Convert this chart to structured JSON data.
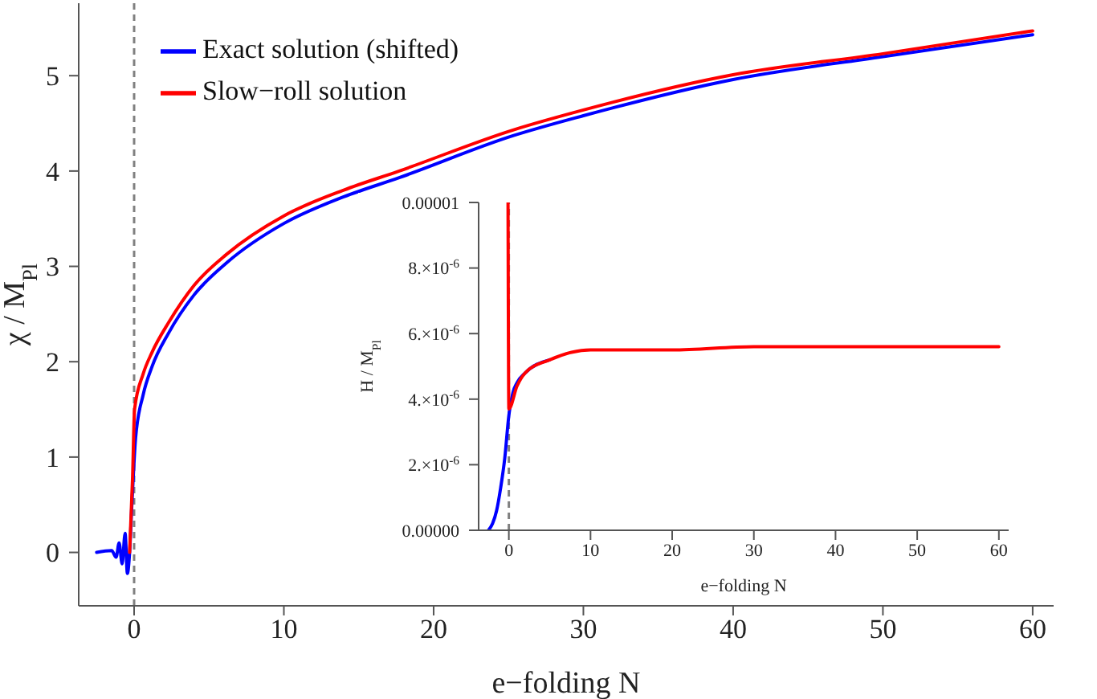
{
  "chart_data": [
    {
      "type": "line",
      "xlabel": "e−folding N",
      "ylabel": "χ / M$_{Pl}$",
      "xlim": [
        -3.7,
        61.4
      ],
      "ylim": [
        -0.56,
        5.76
      ],
      "xticks": [
        0,
        10,
        20,
        30,
        40,
        50,
        60
      ],
      "yticks": [
        0,
        1,
        2,
        3,
        4,
        5
      ],
      "legend": "top left",
      "ref_lines": [
        {
          "axis": "x",
          "value": 0,
          "color": "#808080",
          "line_style": "dashed"
        }
      ],
      "series": [
        {
          "name": "Exact solution (shifted)",
          "color": "#0000ff",
          "x": [
            -2.5,
            -1.5,
            -1.2,
            -1.0,
            -0.8,
            -0.6,
            -0.45,
            -0.3,
            -0.15,
            0.1,
            0.6,
            1.2,
            2.3,
            4,
            6.2,
            10,
            14,
            17.7,
            25.3,
            30,
            40,
            50,
            60
          ],
          "values": [
            0,
            0.02,
            -0.05,
            0.1,
            -0.12,
            0.2,
            -0.22,
            0,
            0.5,
            1.2,
            1.65,
            1.95,
            2.3,
            2.7,
            3.04,
            3.45,
            3.73,
            3.93,
            4.37,
            4.58,
            4.96,
            5.2,
            5.43
          ]
        },
        {
          "name": "Slow−roll solution",
          "color": "#ff0000",
          "x": [
            -0.3,
            -0.1,
            0.03,
            0.6,
            1.2,
            2.3,
            4,
            6.2,
            10,
            14,
            17.7,
            25.3,
            30,
            40,
            50,
            60
          ],
          "values": [
            0,
            0.8,
            1.5,
            1.87,
            2.1,
            2.41,
            2.8,
            3.13,
            3.53,
            3.8,
            4.0,
            4.43,
            4.64,
            5.01,
            5.23,
            5.47
          ]
        }
      ]
    },
    {
      "type": "line",
      "xlabel": "e−folding N",
      "ylabel": "H / M$_{Pl}$",
      "xlim": [
        -3.7,
        61.2
      ],
      "ylim": [
        0,
        1e-05
      ],
      "xticks": [
        0,
        10,
        20,
        30,
        40,
        50,
        60
      ],
      "yticks": [
        {
          "value": 0,
          "label": "0.00000"
        },
        {
          "value": 2e-06,
          "label": "2.×10$^{-6}$"
        },
        {
          "value": 4e-06,
          "label": "4.×10$^{-6}$"
        },
        {
          "value": 6e-06,
          "label": "6.×10$^{-6}$"
        },
        {
          "value": 8e-06,
          "label": "8.×10$^{-6}$"
        },
        {
          "value": 1e-05,
          "label": "0.00001"
        }
      ],
      "ref_lines": [
        {
          "axis": "x",
          "value": 0,
          "color": "#808080",
          "line_style": "dashed"
        }
      ],
      "series": [
        {
          "color": "#0000ff",
          "x": [
            -2.5,
            -2,
            -1.5,
            -1,
            -0.5,
            0,
            0.5,
            1,
            2,
            5
          ],
          "values": [
            0,
            2e-07,
            6e-07,
            1.3e-06,
            2.2e-06,
            3.5e-06,
            4.2e-06,
            4.5e-06,
            4.8e-06,
            5.2e-06
          ]
        },
        {
          "color": "#ff0000",
          "x": [
            -0.1,
            0,
            1,
            2,
            5,
            10,
            20,
            30,
            60
          ],
          "values": [
            1e-05,
            3.7e-06,
            4.4e-06,
            4.8e-06,
            5.2e-06,
            5.5e-06,
            5.5e-06,
            5.6e-06,
            5.6e-06
          ]
        }
      ]
    }
  ]
}
